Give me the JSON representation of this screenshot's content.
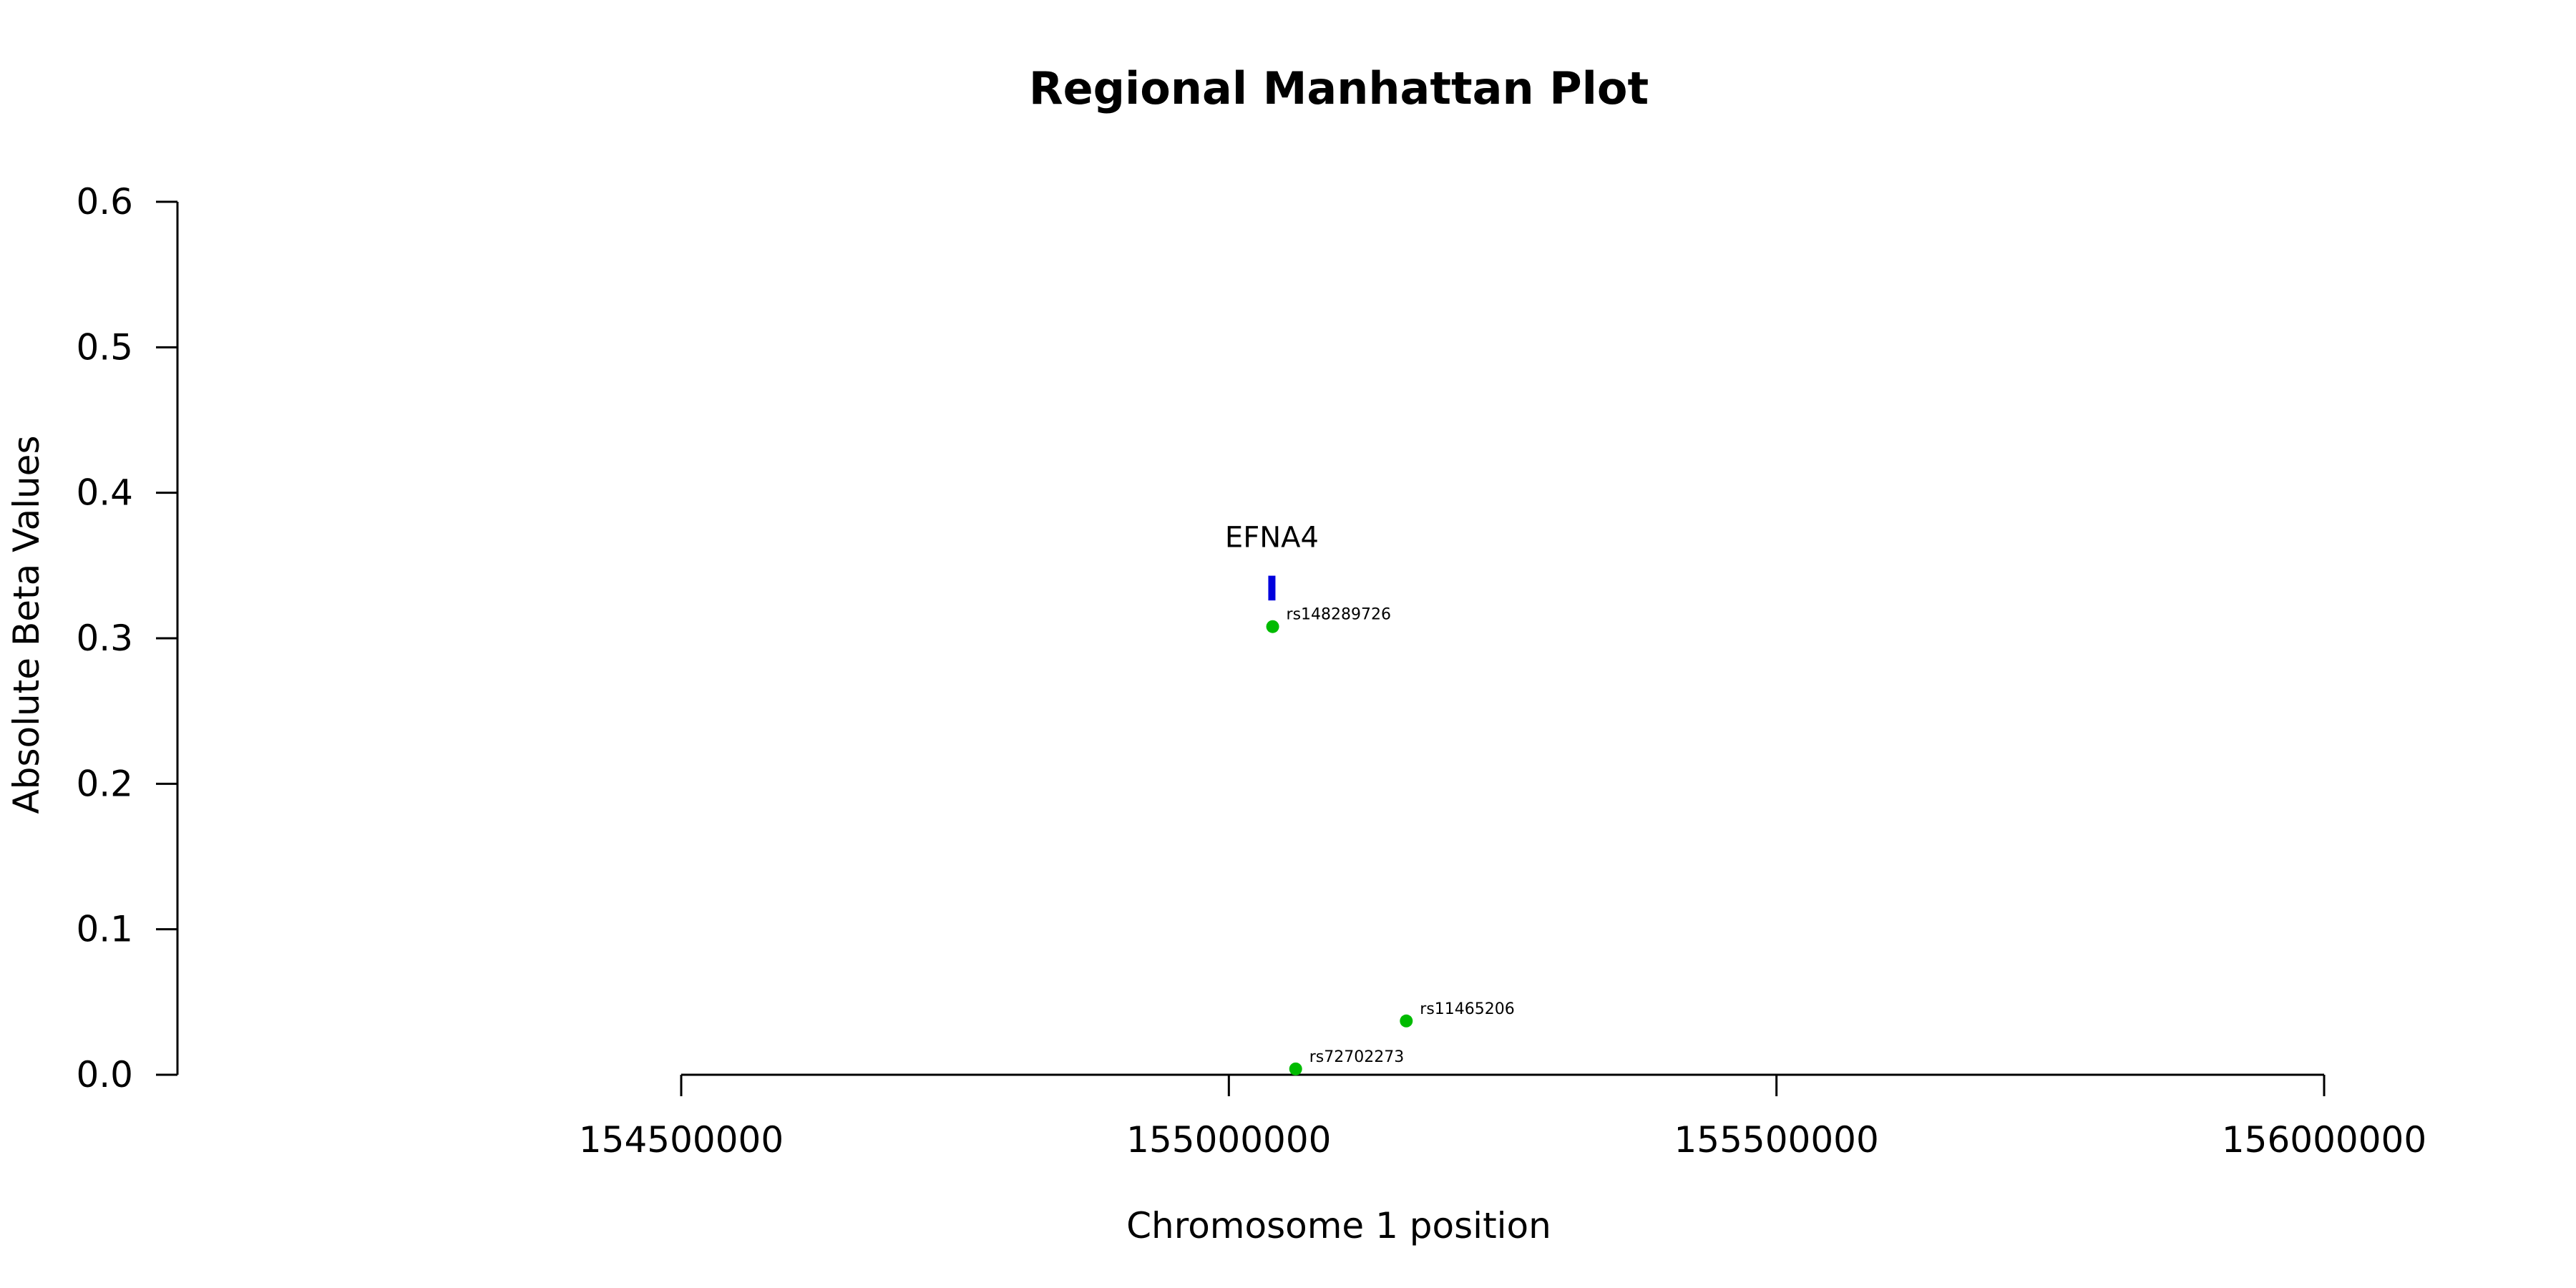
{
  "chart_data": {
    "type": "scatter",
    "title": "Regional Manhattan Plot",
    "xlabel": "Chromosome 1 position",
    "ylabel": "Absolute Beta Values",
    "xlim": [
      154500000,
      156000000
    ],
    "ylim": [
      0,
      0.6
    ],
    "x_ticks": [
      154500000,
      155000000,
      155500000,
      156000000
    ],
    "x_tick_labels": [
      "154500000",
      "155000000",
      "155500000",
      "156000000"
    ],
    "y_ticks": [
      0,
      0.1,
      0.2,
      0.3,
      0.4,
      0.5,
      0.6
    ],
    "y_tick_labels": [
      "0.0",
      "0.1",
      "0.2",
      "0.3",
      "0.4",
      "0.5",
      "0.6"
    ],
    "grid": false,
    "points": [
      {
        "label": "rs148289726",
        "x": 155040000,
        "y": 0.308
      },
      {
        "label": "rs11465206",
        "x": 155162000,
        "y": 0.037
      },
      {
        "label": "rs72702273",
        "x": 155061000,
        "y": 0.004
      }
    ],
    "genes": [
      {
        "name": "EFNA4",
        "x_start": 155036000,
        "x_end": 155041000,
        "y_low": 0.326,
        "y_high": 0.343
      }
    ],
    "colors": {
      "points": "#00BB00",
      "genes": "#0000DD",
      "axis": "#000000"
    }
  }
}
